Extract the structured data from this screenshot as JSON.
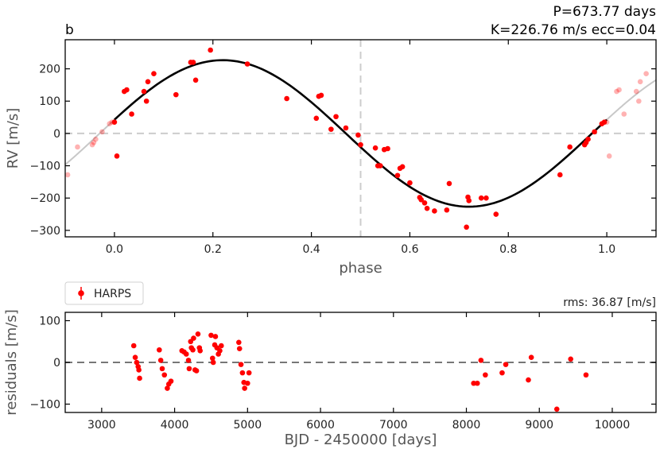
{
  "chart_data": [
    {
      "type": "scatter",
      "panel_label": "b",
      "header_line1": "P=673.77 days",
      "header_line2": "K=226.76 m/s  ecc=0.04",
      "xlabel": "phase",
      "ylabel": "RV [m/s]",
      "xlim": [
        -0.1,
        1.1
      ],
      "ylim": [
        -320,
        290
      ],
      "xticks": [
        0.0,
        0.2,
        0.4,
        0.6,
        0.8,
        1.0
      ],
      "xtick_labels": [
        "0.0",
        "0.2",
        "0.4",
        "0.6",
        "0.8",
        "1.0"
      ],
      "yticks": [
        -300,
        -200,
        -100,
        0,
        100,
        200
      ],
      "ytick_labels": [
        "−300",
        "−200",
        "−100",
        "0",
        "100",
        "200"
      ],
      "model": {
        "period_days": 673.77,
        "K": 226.76,
        "ecc": 0.04,
        "peak_phase": 0.22,
        "color": "#000000",
        "wrap_color": "#c8c8c8"
      },
      "reference_lines": {
        "y": 0,
        "x": 0.5,
        "color": "#cccccc"
      },
      "point_color": "#ff0000",
      "grid": false,
      "series": [
        {
          "name": "HARPS",
          "x": [
            0.0,
            0.005,
            0.02,
            0.025,
            0.035,
            0.06,
            0.065,
            0.068,
            0.08,
            0.125,
            0.155,
            0.16,
            0.165,
            0.195,
            0.27,
            0.35,
            0.41,
            0.415,
            0.42,
            0.44,
            0.45,
            0.47,
            0.495,
            0.5,
            0.53,
            0.535,
            0.54,
            0.548,
            0.555,
            0.575,
            0.58,
            0.585,
            0.6,
            0.62,
            0.623,
            0.63,
            0.635,
            0.65,
            0.675,
            0.68,
            0.715,
            0.718,
            0.72,
            0.745,
            0.755,
            0.775,
            0.905,
            0.925,
            0.955,
            0.958,
            0.962,
            0.975,
            0.99,
            0.995
          ],
          "y": [
            35,
            -70,
            130,
            135,
            60,
            130,
            100,
            160,
            185,
            120,
            220,
            220,
            165,
            258,
            215,
            108,
            47,
            115,
            118,
            13,
            52,
            17,
            -5,
            -35,
            -45,
            -100,
            -100,
            -50,
            -47,
            -130,
            -108,
            -103,
            -153,
            -198,
            -205,
            -215,
            -232,
            -240,
            -237,
            -155,
            -290,
            -197,
            -208,
            -200,
            -200,
            -250,
            -128,
            -42,
            -35,
            -28,
            -18,
            5,
            30,
            35
          ]
        }
      ]
    },
    {
      "type": "scatter",
      "legend_label": "HARPS",
      "rms_label": "rms: 36.87 [m/s]",
      "xlabel": "BJD - 2450000 [days]",
      "ylabel": "residuals [m/s]",
      "xlim": [
        2500,
        10600
      ],
      "ylim": [
        -120,
        120
      ],
      "xticks": [
        3000,
        4000,
        5000,
        6000,
        7000,
        8000,
        9000,
        10000
      ],
      "xtick_labels": [
        "3000",
        "4000",
        "5000",
        "6000",
        "7000",
        "8000",
        "9000",
        "10000"
      ],
      "yticks": [
        -100,
        0,
        100
      ],
      "ytick_labels": [
        "−100",
        "0",
        "100"
      ],
      "zero_line_color": "#777777",
      "point_color": "#ff0000",
      "grid": false,
      "series": [
        {
          "name": "HARPS",
          "x": [
            3440,
            3460,
            3480,
            3500,
            3510,
            3520,
            3790,
            3810,
            3830,
            3860,
            3900,
            3920,
            3950,
            4100,
            4130,
            4160,
            4190,
            4200,
            4220,
            4230,
            4250,
            4260,
            4280,
            4300,
            4320,
            4340,
            4350,
            4500,
            4520,
            4530,
            4550,
            4560,
            4580,
            4600,
            4620,
            4640,
            4880,
            4890,
            4910,
            4930,
            4950,
            4960,
            5000,
            5020,
            8100,
            8150,
            8200,
            8260,
            8490,
            8540,
            8850,
            8890,
            9240,
            9430,
            9640
          ],
          "y": [
            40,
            12,
            0,
            -10,
            -18,
            -38,
            30,
            5,
            -15,
            -30,
            -62,
            -52,
            -45,
            28,
            25,
            20,
            5,
            -15,
            50,
            35,
            30,
            58,
            -18,
            -20,
            68,
            35,
            28,
            65,
            10,
            0,
            42,
            62,
            35,
            20,
            28,
            40,
            48,
            33,
            -5,
            -25,
            -48,
            -62,
            -50,
            -25,
            -50,
            -50,
            5,
            -30,
            -25,
            -5,
            -42,
            12,
            -112,
            8,
            -30
          ]
        }
      ]
    }
  ]
}
